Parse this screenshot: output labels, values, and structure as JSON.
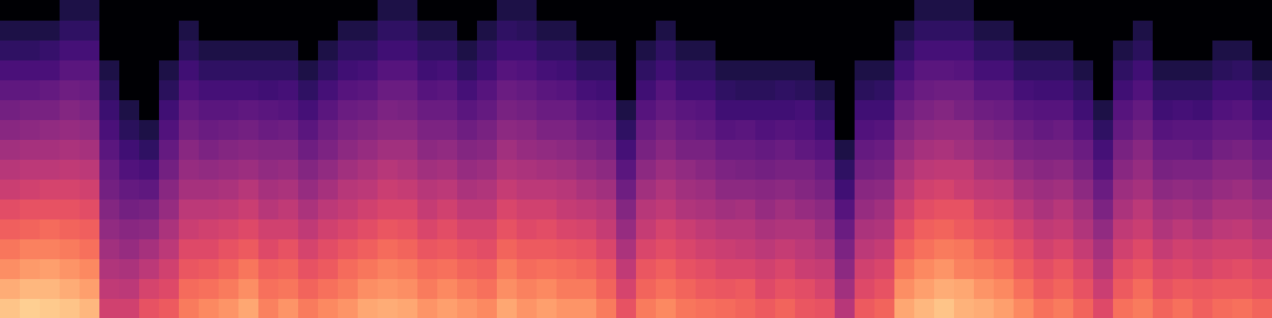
{
  "chart_data": {
    "type": "heatmap",
    "tick_labels": false,
    "zlim": [
      -80,
      0
    ],
    "cells": [
      [
        -10,
        -14,
        -19,
        -23,
        -27,
        -31,
        -36,
        -40,
        -44,
        -49,
        -53,
        -57,
        -61,
        -66,
        -70,
        -80
      ],
      [
        -8,
        -12,
        -17,
        -21,
        -26,
        -30,
        -35,
        -39,
        -43,
        -48,
        -52,
        -57,
        -61,
        -66,
        -70,
        -80
      ],
      [
        -9,
        -12,
        -16,
        -21,
        -25,
        -30,
        -34,
        -39,
        -43,
        -47,
        -52,
        -56,
        -61,
        -65,
        -70,
        -80
      ],
      [
        -10,
        -14,
        -18,
        -22,
        -26,
        -30,
        -34,
        -38,
        -42,
        -46,
        -50,
        -54,
        -58,
        -62,
        -66,
        -70
      ],
      [
        -12,
        -16,
        -20,
        -24,
        -27,
        -31,
        -35,
        -39,
        -43,
        -47,
        -51,
        -55,
        -58,
        -62,
        -66,
        -70
      ],
      [
        -35,
        -38,
        -41,
        -44,
        -47,
        -50,
        -53,
        -55,
        -58,
        -61,
        -64,
        -67,
        -70,
        -80,
        -80,
        -80
      ],
      [
        -35,
        -39,
        -42,
        -46,
        -49,
        -53,
        -56,
        -60,
        -63,
        -67,
        -70,
        -80,
        -80,
        -80,
        -80,
        -80
      ],
      [
        -30,
        -34,
        -39,
        -43,
        -48,
        -52,
        -57,
        -61,
        -66,
        -70,
        -80,
        -80,
        -80,
        -80,
        -80,
        -80
      ],
      [
        -28,
        -32,
        -35,
        -39,
        -42,
        -46,
        -49,
        -53,
        -56,
        -60,
        -63,
        -67,
        -70,
        -80,
        -80,
        -80
      ],
      [
        -22,
        -25,
        -29,
        -32,
        -36,
        -39,
        -43,
        -46,
        -49,
        -53,
        -56,
        -60,
        -63,
        -67,
        -70,
        -80
      ],
      [
        -20,
        -24,
        -28,
        -32,
        -35,
        -39,
        -43,
        -47,
        -51,
        -55,
        -58,
        -62,
        -66,
        -70,
        -80,
        -80
      ],
      [
        -18,
        -22,
        -26,
        -30,
        -34,
        -38,
        -42,
        -46,
        -50,
        -54,
        -58,
        -62,
        -66,
        -70,
        -80,
        -80
      ],
      [
        -15,
        -19,
        -23,
        -28,
        -32,
        -36,
        -40,
        -45,
        -49,
        -53,
        -57,
        -62,
        -66,
        -70,
        -80,
        -80
      ],
      [
        -21,
        -24,
        -27,
        -32,
        -35,
        -40,
        -43,
        -47,
        -50,
        -55,
        -58,
        -63,
        -66,
        -70,
        -80,
        -80
      ],
      [
        -18,
        -23,
        -26,
        -30,
        -35,
        -38,
        -42,
        -46,
        -50,
        -54,
        -59,
        -62,
        -66,
        -70,
        -80,
        -80
      ],
      [
        -22,
        -26,
        -30,
        -34,
        -38,
        -42,
        -46,
        -50,
        -54,
        -58,
        -62,
        -66,
        -70,
        -80,
        -80,
        -80
      ],
      [
        -20,
        -24,
        -28,
        -31,
        -35,
        -39,
        -43,
        -47,
        -51,
        -54,
        -58,
        -62,
        -66,
        -70,
        -80,
        -80
      ],
      [
        -18,
        -22,
        -25,
        -29,
        -33,
        -37,
        -40,
        -44,
        -48,
        -51,
        -55,
        -59,
        -63,
        -66,
        -70,
        -80
      ],
      [
        -15,
        -19,
        -23,
        -27,
        -31,
        -35,
        -39,
        -42,
        -46,
        -50,
        -54,
        -58,
        -62,
        -66,
        -70,
        -80
      ],
      [
        -14,
        -18,
        -21,
        -25,
        -29,
        -33,
        -36,
        -40,
        -44,
        -48,
        -51,
        -55,
        -59,
        -63,
        -66,
        -70
      ],
      [
        -15,
        -19,
        -22,
        -26,
        -30,
        -33,
        -37,
        -41,
        -44,
        -48,
        -52,
        -55,
        -59,
        -63,
        -66,
        -70
      ],
      [
        -18,
        -22,
        -25,
        -29,
        -33,
        -37,
        -40,
        -44,
        -48,
        -51,
        -55,
        -59,
        -63,
        -66,
        -70,
        -80
      ],
      [
        -16,
        -20,
        -24,
        -28,
        -31,
        -35,
        -39,
        -43,
        -47,
        -51,
        -55,
        -58,
        -62,
        -66,
        -70,
        -80
      ],
      [
        -18,
        -22,
        -26,
        -30,
        -34,
        -38,
        -42,
        -46,
        -50,
        -54,
        -58,
        -62,
        -66,
        -70,
        -80,
        -80
      ],
      [
        -20,
        -24,
        -27,
        -31,
        -34,
        -38,
        -41,
        -45,
        -49,
        -52,
        -56,
        -59,
        -63,
        -66,
        -70,
        -80
      ],
      [
        -15,
        -19,
        -22,
        -26,
        -30,
        -33,
        -37,
        -41,
        -44,
        -48,
        -52,
        -55,
        -59,
        -63,
        -66,
        -70
      ],
      [
        -18,
        -21,
        -25,
        -28,
        -32,
        -35,
        -39,
        -42,
        -46,
        -49,
        -53,
        -56,
        -60,
        -63,
        -67,
        -70
      ],
      [
        -16,
        -20,
        -24,
        -28,
        -31,
        -35,
        -39,
        -43,
        -47,
        -51,
        -55,
        -58,
        -62,
        -66,
        -70,
        -80
      ],
      [
        -18,
        -22,
        -25,
        -29,
        -33,
        -37,
        -40,
        -44,
        -48,
        -51,
        -55,
        -59,
        -63,
        -66,
        -70,
        -80
      ],
      [
        -18,
        -22,
        -26,
        -30,
        -34,
        -38,
        -42,
        -46,
        -50,
        -54,
        -58,
        -62,
        -66,
        -70,
        -80,
        -80
      ],
      [
        -22,
        -26,
        -29,
        -33,
        -37,
        -40,
        -44,
        -48,
        -52,
        -55,
        -59,
        -63,
        -66,
        -70,
        -80,
        -80
      ],
      [
        -30,
        -34,
        -38,
        -42,
        -46,
        -50,
        -54,
        -58,
        -62,
        -66,
        -70,
        -80,
        -80,
        -80,
        -80,
        -80
      ],
      [
        -22,
        -26,
        -29,
        -33,
        -37,
        -40,
        -44,
        -48,
        -52,
        -55,
        -59,
        -63,
        -66,
        -70,
        -80,
        -80
      ],
      [
        -20,
        -24,
        -27,
        -31,
        -34,
        -38,
        -41,
        -45,
        -49,
        -52,
        -56,
        -59,
        -63,
        -66,
        -70,
        -80
      ],
      [
        -23,
        -26,
        -30,
        -33,
        -36,
        -41,
        -44,
        -47,
        -52,
        -55,
        -58,
        -63,
        -66,
        -70,
        -80,
        -80
      ],
      [
        -24,
        -28,
        -31,
        -35,
        -38,
        -42,
        -45,
        -49,
        -52,
        -56,
        -59,
        -63,
        -66,
        -70,
        -80,
        -80
      ],
      [
        -25,
        -29,
        -33,
        -36,
        -40,
        -44,
        -48,
        -51,
        -55,
        -59,
        -63,
        -66,
        -70,
        -80,
        -80,
        -80
      ],
      [
        -26,
        -28,
        -33,
        -37,
        -40,
        -43,
        -48,
        -52,
        -55,
        -58,
        -63,
        -67,
        -70,
        -80,
        -80,
        -80
      ],
      [
        -28,
        -32,
        -35,
        -39,
        -42,
        -46,
        -49,
        -53,
        -56,
        -60,
        -63,
        -67,
        -70,
        -80,
        -80,
        -80
      ],
      [
        -26,
        -30,
        -33,
        -37,
        -41,
        -44,
        -48,
        -52,
        -55,
        -59,
        -63,
        -66,
        -70,
        -80,
        -80,
        -80
      ],
      [
        -29,
        -31,
        -36,
        -39,
        -41,
        -46,
        -50,
        -52,
        -57,
        -60,
        -62,
        -67,
        -70,
        -80,
        -80,
        -80
      ],
      [
        -30,
        -34,
        -37,
        -41,
        -45,
        -48,
        -52,
        -55,
        -59,
        -63,
        -66,
        -70,
        -80,
        -80,
        -80,
        -80
      ],
      [
        -40,
        -44,
        -48,
        -51,
        -55,
        -59,
        -63,
        -66,
        -70,
        -80,
        -80,
        -80,
        -80,
        -80,
        -80,
        -80
      ],
      [
        -28,
        -32,
        -35,
        -39,
        -42,
        -46,
        -49,
        -53,
        -56,
        -60,
        -63,
        -67,
        -70,
        -80,
        -80,
        -80
      ],
      [
        -26,
        -30,
        -33,
        -37,
        -41,
        -44,
        -48,
        -52,
        -55,
        -59,
        -63,
        -66,
        -70,
        -80,
        -80,
        -80
      ],
      [
        -15,
        -19,
        -23,
        -27,
        -31,
        -35,
        -39,
        -42,
        -46,
        -50,
        -54,
        -58,
        -62,
        -66,
        -70,
        -80
      ],
      [
        -12,
        -16,
        -20,
        -24,
        -27,
        -31,
        -35,
        -39,
        -43,
        -47,
        -51,
        -55,
        -58,
        -62,
        -66,
        -70
      ],
      [
        -10,
        -14,
        -18,
        -22,
        -26,
        -30,
        -34,
        -38,
        -42,
        -46,
        -50,
        -54,
        -58,
        -62,
        -66,
        -70
      ],
      [
        -13,
        -15,
        -21,
        -23,
        -28,
        -30,
        -36,
        -38,
        -44,
        -46,
        -52,
        -54,
        -59,
        -62,
        -66,
        -70
      ],
      [
        -14,
        -18,
        -22,
        -26,
        -30,
        -34,
        -38,
        -42,
        -46,
        -50,
        -54,
        -58,
        -62,
        -66,
        -70,
        -80
      ],
      [
        -16,
        -20,
        -24,
        -28,
        -31,
        -35,
        -39,
        -43,
        -47,
        -51,
        -55,
        -58,
        -62,
        -66,
        -70,
        -80
      ],
      [
        -20,
        -24,
        -28,
        -31,
        -35,
        -39,
        -43,
        -47,
        -51,
        -54,
        -58,
        -62,
        -66,
        -70,
        -80,
        -80
      ],
      [
        -24,
        -28,
        -31,
        -35,
        -38,
        -42,
        -45,
        -49,
        -52,
        -56,
        -59,
        -63,
        -66,
        -70,
        -80,
        -80
      ],
      [
        -22,
        -26,
        -29,
        -33,
        -37,
        -40,
        -44,
        -48,
        -52,
        -55,
        -59,
        -63,
        -66,
        -70,
        -80,
        -80
      ],
      [
        -26,
        -30,
        -33,
        -37,
        -41,
        -44,
        -48,
        -52,
        -55,
        -59,
        -63,
        -66,
        -70,
        -80,
        -80,
        -80
      ],
      [
        -32,
        -36,
        -40,
        -43,
        -47,
        -51,
        -55,
        -59,
        -62,
        -66,
        -70,
        -80,
        -80,
        -80,
        -80,
        -80
      ],
      [
        -24,
        -28,
        -31,
        -35,
        -38,
        -42,
        -45,
        -49,
        -52,
        -56,
        -59,
        -63,
        -66,
        -70,
        -80,
        -80
      ],
      [
        -22,
        -25,
        -29,
        -32,
        -36,
        -39,
        -43,
        -46,
        -49,
        -53,
        -56,
        -60,
        -63,
        -67,
        -70,
        -80
      ],
      [
        -26,
        -30,
        -33,
        -37,
        -41,
        -44,
        -48,
        -52,
        -55,
        -59,
        -63,
        -66,
        -70,
        -80,
        -80,
        -80
      ],
      [
        -24,
        -28,
        -32,
        -35,
        -39,
        -43,
        -47,
        -51,
        -55,
        -58,
        -62,
        -66,
        -70,
        -80,
        -80,
        -80
      ],
      [
        -27,
        -29,
        -34,
        -36,
        -41,
        -45,
        -48,
        -51,
        -56,
        -58,
        -63,
        -66,
        -70,
        -80,
        -80,
        -80
      ],
      [
        -25,
        -28,
        -32,
        -35,
        -39,
        -42,
        -46,
        -49,
        -53,
        -56,
        -60,
        -63,
        -67,
        -70,
        -80,
        -80
      ],
      [
        -24,
        -28,
        -31,
        -35,
        -38,
        -42,
        -45,
        -49,
        -52,
        -56,
        -59,
        -63,
        -66,
        -70,
        -80,
        -80
      ],
      [
        -26,
        -30,
        -33,
        -37,
        -41,
        -44,
        -48,
        -52,
        -55,
        -59,
        -63,
        -66,
        -70,
        -80,
        -80,
        -80
      ]
    ]
  }
}
